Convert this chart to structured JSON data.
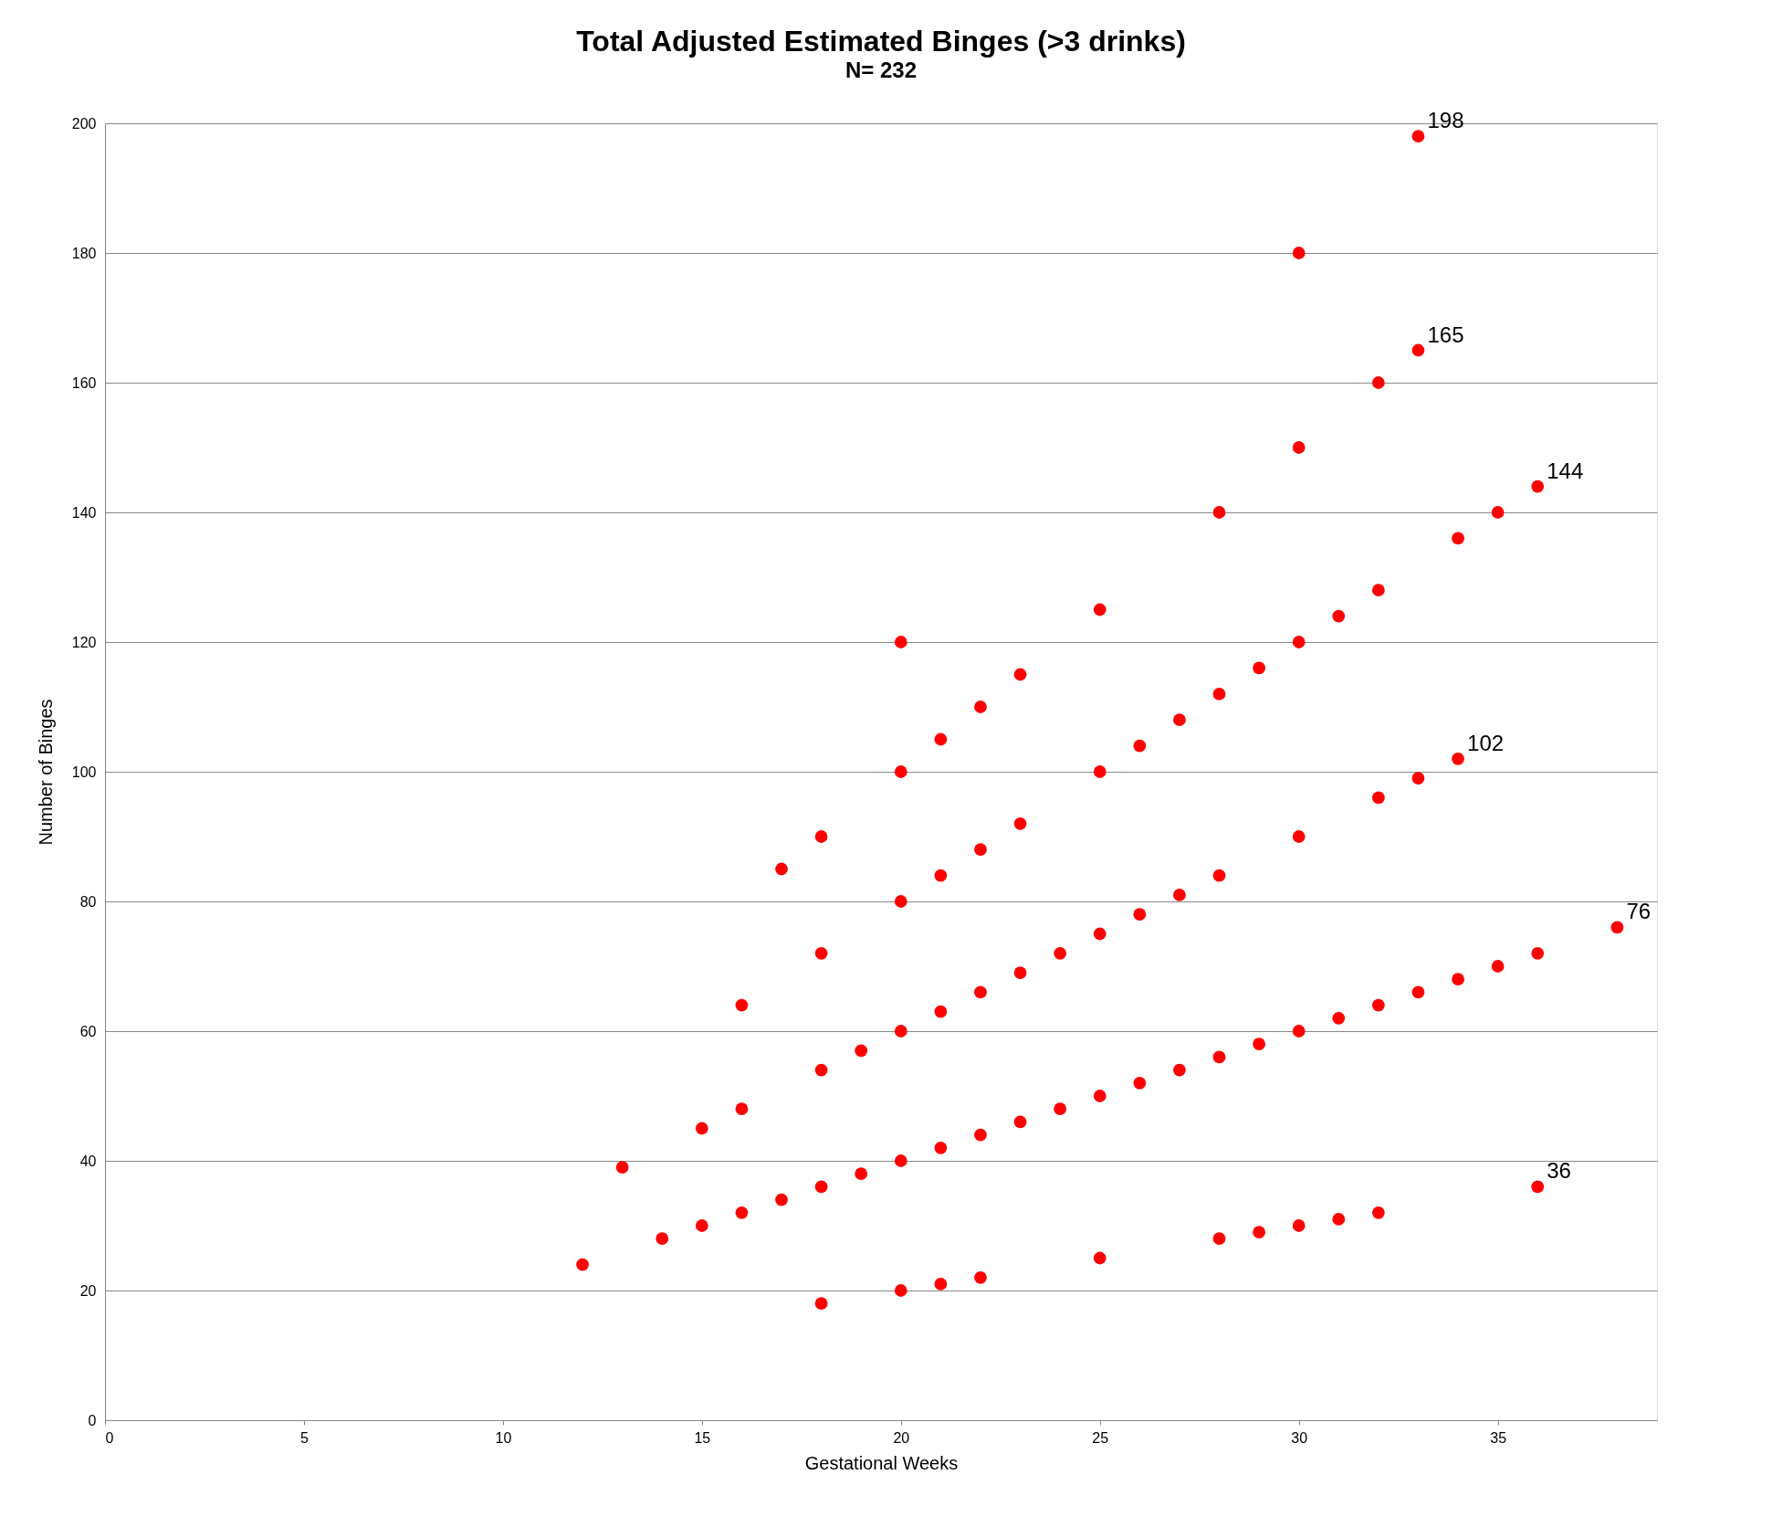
{
  "chart_data": {
    "type": "scatter",
    "title": "Total Adjusted Estimated Binges (>3 drinks)",
    "subtitle": "N= 232",
    "xlabel": "Gestational Weeks",
    "ylabel": "Number of Binges",
    "x": [
      12,
      13,
      14,
      15,
      15,
      16,
      16,
      16,
      17,
      17,
      18,
      18,
      18,
      18,
      18,
      19,
      19,
      20,
      20,
      20,
      20,
      20,
      20,
      21,
      21,
      21,
      21,
      21,
      22,
      22,
      22,
      22,
      22,
      23,
      23,
      23,
      23,
      24,
      24,
      25,
      25,
      25,
      25,
      25,
      26,
      26,
      26,
      27,
      27,
      27,
      28,
      28,
      28,
      28,
      28,
      29,
      29,
      29,
      30,
      30,
      30,
      30,
      30,
      30,
      31,
      31,
      31,
      32,
      32,
      32,
      32,
      32,
      33,
      33,
      33,
      33,
      34,
      34,
      34,
      35,
      35,
      36,
      36,
      36,
      38
    ],
    "series": [
      {
        "color": "#ff0000",
        "values": [
          24,
          39,
          28,
          45,
          30,
          64,
          48,
          32,
          85,
          34,
          90,
          72,
          54,
          36,
          18,
          57,
          38,
          120,
          100,
          80,
          60,
          40,
          20,
          105,
          84,
          63,
          42,
          21,
          110,
          88,
          66,
          44,
          22,
          115,
          92,
          69,
          46,
          72,
          48,
          125,
          100,
          75,
          50,
          25,
          104,
          78,
          52,
          108,
          81,
          54,
          140,
          112,
          84,
          56,
          28,
          116,
          58,
          29,
          180,
          150,
          120,
          90,
          60,
          30,
          124,
          62,
          31,
          160,
          128,
          96,
          64,
          32,
          198,
          165,
          99,
          66,
          136,
          102,
          68,
          140,
          70,
          144,
          72,
          36,
          76
        ],
        "value_labels": [
          null,
          null,
          null,
          null,
          null,
          null,
          null,
          null,
          null,
          null,
          null,
          null,
          null,
          null,
          null,
          null,
          null,
          null,
          null,
          null,
          null,
          null,
          null,
          null,
          null,
          null,
          null,
          null,
          null,
          null,
          null,
          null,
          null,
          null,
          null,
          null,
          null,
          null,
          null,
          null,
          null,
          null,
          null,
          null,
          null,
          null,
          null,
          null,
          null,
          null,
          null,
          null,
          null,
          null,
          null,
          null,
          null,
          null,
          null,
          null,
          null,
          null,
          null,
          null,
          null,
          null,
          null,
          null,
          null,
          null,
          null,
          null,
          "198",
          "165",
          null,
          null,
          null,
          "102",
          null,
          null,
          null,
          "144",
          null,
          "36",
          "76"
        ]
      }
    ],
    "xlim": [
      0,
      39
    ],
    "xticks": [
      0,
      5,
      10,
      15,
      20,
      25,
      30,
      35
    ],
    "ylim": [
      0,
      200
    ],
    "yticks": [
      0,
      20,
      40,
      60,
      80,
      100,
      120,
      140,
      160,
      180,
      200
    ],
    "grid": "y",
    "marker": "circle"
  }
}
